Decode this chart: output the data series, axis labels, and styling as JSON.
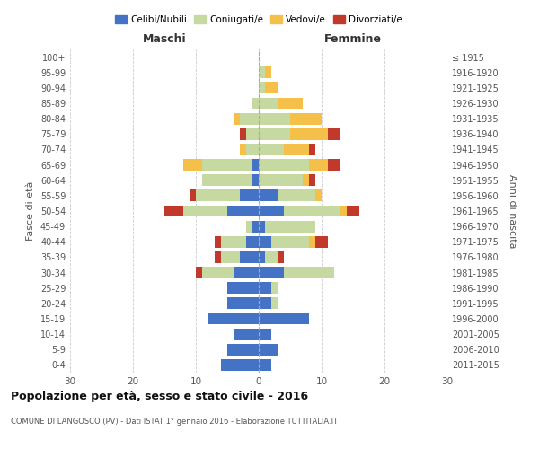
{
  "age_groups": [
    "0-4",
    "5-9",
    "10-14",
    "15-19",
    "20-24",
    "25-29",
    "30-34",
    "35-39",
    "40-44",
    "45-49",
    "50-54",
    "55-59",
    "60-64",
    "65-69",
    "70-74",
    "75-79",
    "80-84",
    "85-89",
    "90-94",
    "95-99",
    "100+"
  ],
  "birth_years": [
    "2011-2015",
    "2006-2010",
    "2001-2005",
    "1996-2000",
    "1991-1995",
    "1986-1990",
    "1981-1985",
    "1976-1980",
    "1971-1975",
    "1966-1970",
    "1961-1965",
    "1956-1960",
    "1951-1955",
    "1946-1950",
    "1941-1945",
    "1936-1940",
    "1931-1935",
    "1926-1930",
    "1921-1925",
    "1916-1920",
    "≤ 1915"
  ],
  "males": {
    "celibi": [
      6,
      5,
      4,
      8,
      5,
      5,
      4,
      3,
      2,
      1,
      5,
      3,
      1,
      1,
      0,
      0,
      0,
      0,
      0,
      0,
      0
    ],
    "coniugati": [
      0,
      0,
      0,
      0,
      0,
      0,
      5,
      3,
      4,
      1,
      7,
      7,
      8,
      8,
      2,
      2,
      3,
      1,
      0,
      0,
      0
    ],
    "vedovi": [
      0,
      0,
      0,
      0,
      0,
      0,
      0,
      0,
      0,
      0,
      0,
      0,
      0,
      3,
      1,
      0,
      1,
      0,
      0,
      0,
      0
    ],
    "divorziati": [
      0,
      0,
      0,
      0,
      0,
      0,
      1,
      1,
      1,
      0,
      3,
      1,
      0,
      0,
      0,
      1,
      0,
      0,
      0,
      0,
      0
    ]
  },
  "females": {
    "nubili": [
      2,
      3,
      2,
      8,
      2,
      2,
      4,
      1,
      2,
      1,
      4,
      3,
      0,
      0,
      0,
      0,
      0,
      0,
      0,
      0,
      0
    ],
    "coniugate": [
      0,
      0,
      0,
      0,
      1,
      1,
      8,
      2,
      6,
      8,
      9,
      6,
      7,
      8,
      4,
      5,
      5,
      3,
      1,
      1,
      0
    ],
    "vedove": [
      0,
      0,
      0,
      0,
      0,
      0,
      0,
      0,
      1,
      0,
      1,
      1,
      1,
      3,
      4,
      6,
      5,
      4,
      2,
      1,
      0
    ],
    "divorziate": [
      0,
      0,
      0,
      0,
      0,
      0,
      0,
      1,
      2,
      0,
      2,
      0,
      1,
      2,
      1,
      2,
      0,
      0,
      0,
      0,
      0
    ]
  },
  "colors": {
    "celibi": "#4472c4",
    "coniugati": "#c5d9a0",
    "vedovi": "#f5c04a",
    "divorziati": "#c0392b"
  },
  "title": "Popolazione per età, sesso e stato civile - 2016",
  "subtitle": "COMUNE DI LANGOSCO (PV) - Dati ISTAT 1° gennaio 2016 - Elaborazione TUTTITALIA.IT",
  "xlabel_left": "Maschi",
  "xlabel_right": "Femmine",
  "ylabel_left": "Fasce di età",
  "ylabel_right": "Anni di nascita",
  "xlim": 30,
  "legend_labels": [
    "Celibi/Nubili",
    "Coniugati/e",
    "Vedovi/e",
    "Divorziati/e"
  ],
  "background_color": "#ffffff",
  "grid_color": "#cccccc"
}
